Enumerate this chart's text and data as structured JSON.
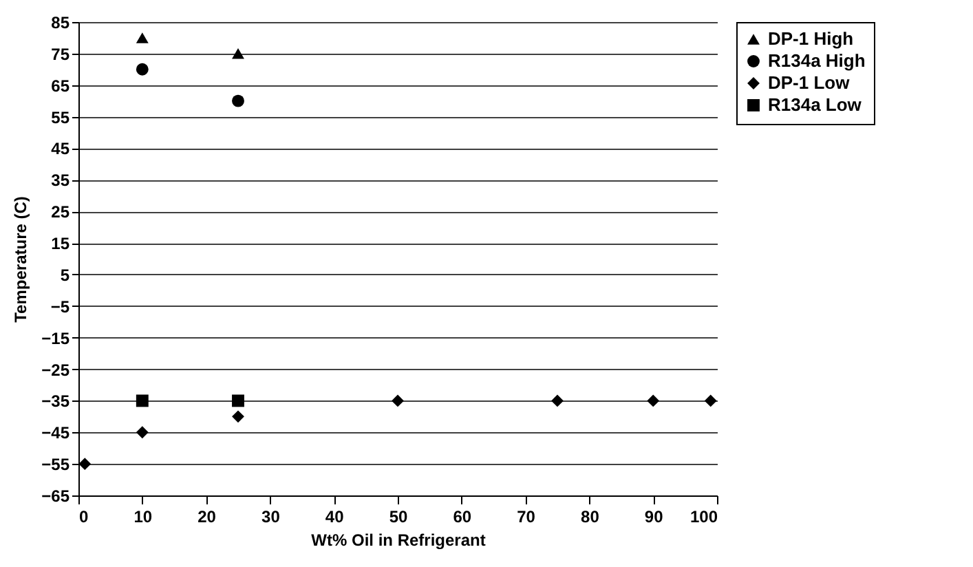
{
  "chart_data": {
    "type": "scatter",
    "xlabel": "Wt% Oil in Refrigerant",
    "ylabel": "Temperature (C)",
    "xlim": [
      0,
      100
    ],
    "xticks": [
      0,
      10,
      20,
      30,
      40,
      50,
      60,
      70,
      80,
      90,
      100
    ],
    "ylim": [
      -65,
      85
    ],
    "yticks": [
      -65,
      -55,
      -45,
      -35,
      -25,
      -15,
      -5,
      5,
      15,
      25,
      35,
      45,
      55,
      65,
      75,
      85
    ],
    "grid": "y",
    "legend": "right",
    "series": [
      {
        "name": "DP-1 High",
        "color": "#000000",
        "marker": "triangle",
        "x": [
          10,
          25
        ],
        "values": [
          80,
          75
        ]
      },
      {
        "name": "R134a High",
        "color": "#000000",
        "marker": "circle",
        "x": [
          10,
          25
        ],
        "values": [
          70,
          60
        ]
      },
      {
        "name": "DP-1 Low",
        "color": "#000000",
        "marker": "diamond",
        "x": [
          1,
          10,
          25,
          50,
          75,
          90,
          99
        ],
        "values": [
          -55,
          -45,
          -40,
          -35,
          -35,
          -35,
          -35
        ]
      },
      {
        "name": "R134a Low",
        "color": "#000000",
        "marker": "square",
        "x": [
          10,
          25
        ],
        "values": [
          -35,
          -35
        ]
      }
    ]
  }
}
